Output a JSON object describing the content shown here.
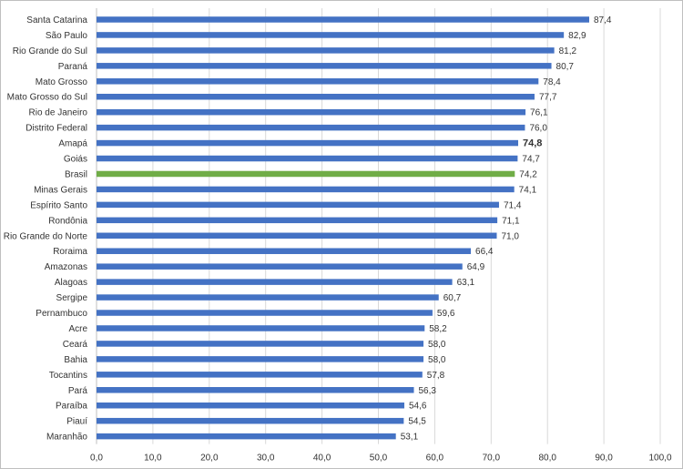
{
  "chart_data": {
    "type": "bar",
    "orientation": "horizontal",
    "categories": [
      "Santa Catarina",
      "São Paulo",
      "Rio Grande do Sul",
      "Paraná",
      "Mato Grosso",
      "Mato Grosso do Sul",
      "Rio de Janeiro",
      "Distrito Federal",
      "Amapá",
      "Goiás",
      "Brasil",
      "Minas Gerais",
      "Espírito Santo",
      "Rondônia",
      "Rio Grande do Norte",
      "Roraima",
      "Amazonas",
      "Alagoas",
      "Sergipe",
      "Pernambuco",
      "Acre",
      "Ceará",
      "Bahia",
      "Tocantins",
      "Pará",
      "Paraíba",
      "Piauí",
      "Maranhão"
    ],
    "values": [
      87.4,
      82.9,
      81.2,
      80.7,
      78.4,
      77.7,
      76.1,
      76.0,
      74.8,
      74.7,
      74.2,
      74.1,
      71.4,
      71.1,
      71.0,
      66.4,
      64.9,
      63.1,
      60.7,
      59.6,
      58.2,
      58.0,
      58.0,
      57.8,
      56.3,
      54.6,
      54.5,
      53.1
    ],
    "value_labels": [
      "87,4",
      "82,9",
      "81,2",
      "80,7",
      "78,4",
      "77,7",
      "76,1",
      "76,0",
      "74,8",
      "74,7",
      "74,2",
      "74,1",
      "71,4",
      "71,1",
      "71,0",
      "66,4",
      "64,9",
      "63,1",
      "60,7",
      "59,6",
      "58,2",
      "58,0",
      "58,0",
      "57,8",
      "56,3",
      "54,6",
      "54,5",
      "53,1"
    ],
    "bold_labels": [
      8
    ],
    "highlight": [
      10
    ],
    "x_ticks": [
      0,
      10,
      20,
      30,
      40,
      50,
      60,
      70,
      80,
      90,
      100
    ],
    "x_tick_labels": [
      "0,0",
      "10,0",
      "20,0",
      "30,0",
      "40,0",
      "50,0",
      "60,0",
      "70,0",
      "80,0",
      "90,0",
      "100,0"
    ],
    "xlim": [
      0,
      100
    ],
    "grid": true,
    "legend": "none",
    "colors": {
      "bar": "#4472c4",
      "highlight": "#70ad47"
    }
  }
}
